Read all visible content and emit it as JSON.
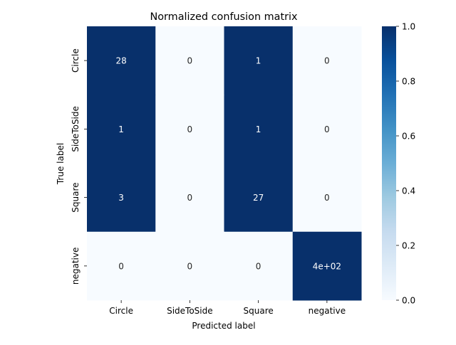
{
  "chart_data": {
    "type": "heatmap",
    "title": "Normalized confusion matrix",
    "xlabel": "Predicted label",
    "ylabel": "True label",
    "x_categories": [
      "Circle",
      "SideToSide",
      "Square",
      "negative"
    ],
    "y_categories": [
      "Circle",
      "SideToSide",
      "Square",
      "negative"
    ],
    "annotations": [
      [
        "28",
        "0",
        "1",
        "0"
      ],
      [
        "1",
        "0",
        "1",
        "0"
      ],
      [
        "3",
        "0",
        "27",
        "0"
      ],
      [
        "0",
        "0",
        "0",
        "4e+02"
      ]
    ],
    "normalized_values": [
      [
        1.0,
        0.0,
        1.0,
        0.0
      ],
      [
        1.0,
        0.0,
        1.0,
        0.0
      ],
      [
        1.0,
        0.0,
        1.0,
        0.0
      ],
      [
        0.0,
        0.0,
        0.0,
        1.0
      ]
    ],
    "colorbar": {
      "range": [
        0.0,
        1.0
      ],
      "ticks": [
        0.0,
        0.2,
        0.4,
        0.6,
        0.8,
        1.0
      ],
      "tick_labels": [
        "0.0",
        "0.2",
        "0.4",
        "0.6",
        "0.8",
        "1.0"
      ],
      "colormap_low": "#f7fbff",
      "colormap_high": "#08306b"
    },
    "grid": false
  }
}
